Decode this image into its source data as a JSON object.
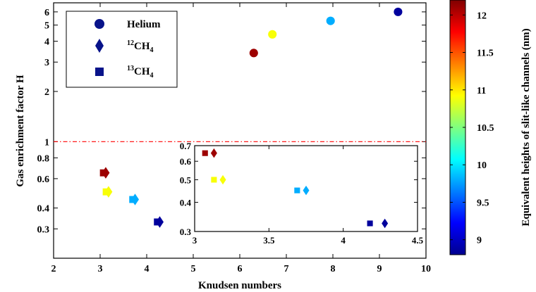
{
  "chart_data": {
    "type": "scatter",
    "title": "",
    "xlabel": "Knudsen numbers",
    "ylabel": "Gas enrichment factor H",
    "xlim": [
      2,
      10
    ],
    "ylim": [
      0.2,
      6.8
    ],
    "yscale": "log",
    "xticks": [
      "2",
      "3",
      "4",
      "5",
      "6",
      "7",
      "8",
      "9",
      "10"
    ],
    "yticks": [
      {
        "label": "0.3",
        "v": 0.3
      },
      {
        "label": "0.4",
        "v": 0.4
      },
      {
        "label": "0.6",
        "v": 0.6
      },
      {
        "label": "0.8",
        "v": 0.8
      },
      {
        "label": "1",
        "v": 1
      },
      {
        "label": "2",
        "v": 2
      },
      {
        "label": "3",
        "v": 3
      },
      {
        "label": "4",
        "v": 4
      },
      {
        "label": "5",
        "v": 5
      },
      {
        "label": "6",
        "v": 6
      }
    ],
    "reference_line": {
      "y": 1,
      "style": "dash-dot",
      "color": "#ff0000"
    },
    "legend": {
      "placement": "top-left",
      "entries": [
        {
          "marker": "circle",
          "label": "Helium",
          "base": "",
          "sub": ""
        },
        {
          "marker": "diamond",
          "label": "",
          "sup": "12",
          "base": "CH",
          "sub": "4"
        },
        {
          "marker": "square",
          "label": "",
          "sup": "13",
          "base": "CH",
          "sub": "4"
        }
      ]
    },
    "series": [
      {
        "marker": "circle",
        "points": [
          {
            "x": 6.3,
            "y": 3.4,
            "c": 12.1
          },
          {
            "x": 6.7,
            "y": 4.4,
            "c": 10.9
          },
          {
            "x": 7.95,
            "y": 5.3,
            "c": 9.8
          },
          {
            "x": 9.4,
            "y": 6.0,
            "c": 8.9
          }
        ]
      },
      {
        "marker": "diamond",
        "points": [
          {
            "x": 3.12,
            "y": 0.65,
            "c": 12.1
          },
          {
            "x": 3.18,
            "y": 0.5,
            "c": 10.9
          },
          {
            "x": 3.75,
            "y": 0.45,
            "c": 9.8
          },
          {
            "x": 4.28,
            "y": 0.33,
            "c": 8.9
          }
        ]
      },
      {
        "marker": "square",
        "points": [
          {
            "x": 3.07,
            "y": 0.65,
            "c": 12.1
          },
          {
            "x": 3.13,
            "y": 0.5,
            "c": 10.9
          },
          {
            "x": 3.7,
            "y": 0.45,
            "c": 9.8
          },
          {
            "x": 4.23,
            "y": 0.33,
            "c": 8.9
          }
        ]
      }
    ],
    "inset": {
      "xlim": [
        3,
        4.5
      ],
      "ylim": [
        0.3,
        0.7
      ],
      "yscale": "log",
      "xticks": [
        "3",
        "3.5",
        "4",
        "4.5"
      ],
      "yticks": [
        {
          "label": "0.3",
          "v": 0.3
        },
        {
          "label": "0.4",
          "v": 0.4
        },
        {
          "label": "0.5",
          "v": 0.5
        },
        {
          "label": "0.6",
          "v": 0.6
        },
        {
          "label": "0.7",
          "v": 0.7
        }
      ],
      "series": [
        {
          "marker": "square",
          "points": [
            {
              "x": 3.07,
              "y": 0.65,
              "c": 12.1
            },
            {
              "x": 3.13,
              "y": 0.5,
              "c": 10.9
            },
            {
              "x": 3.69,
              "y": 0.45,
              "c": 9.8
            },
            {
              "x": 4.18,
              "y": 0.325,
              "c": 8.9
            }
          ]
        },
        {
          "marker": "diamond",
          "points": [
            {
              "x": 3.13,
              "y": 0.65,
              "c": 12.1
            },
            {
              "x": 3.19,
              "y": 0.5,
              "c": 10.9
            },
            {
              "x": 3.75,
              "y": 0.45,
              "c": 9.8
            },
            {
              "x": 4.28,
              "y": 0.325,
              "c": 8.9
            }
          ]
        }
      ]
    },
    "colorbar": {
      "label": "Equivalent heights of slit-like channels (nm)",
      "range": [
        8.8,
        12.2
      ],
      "colormap": "jet",
      "ticks": [
        "9",
        "9.5",
        "10",
        "10.5",
        "11",
        "11.5",
        "12"
      ]
    }
  }
}
